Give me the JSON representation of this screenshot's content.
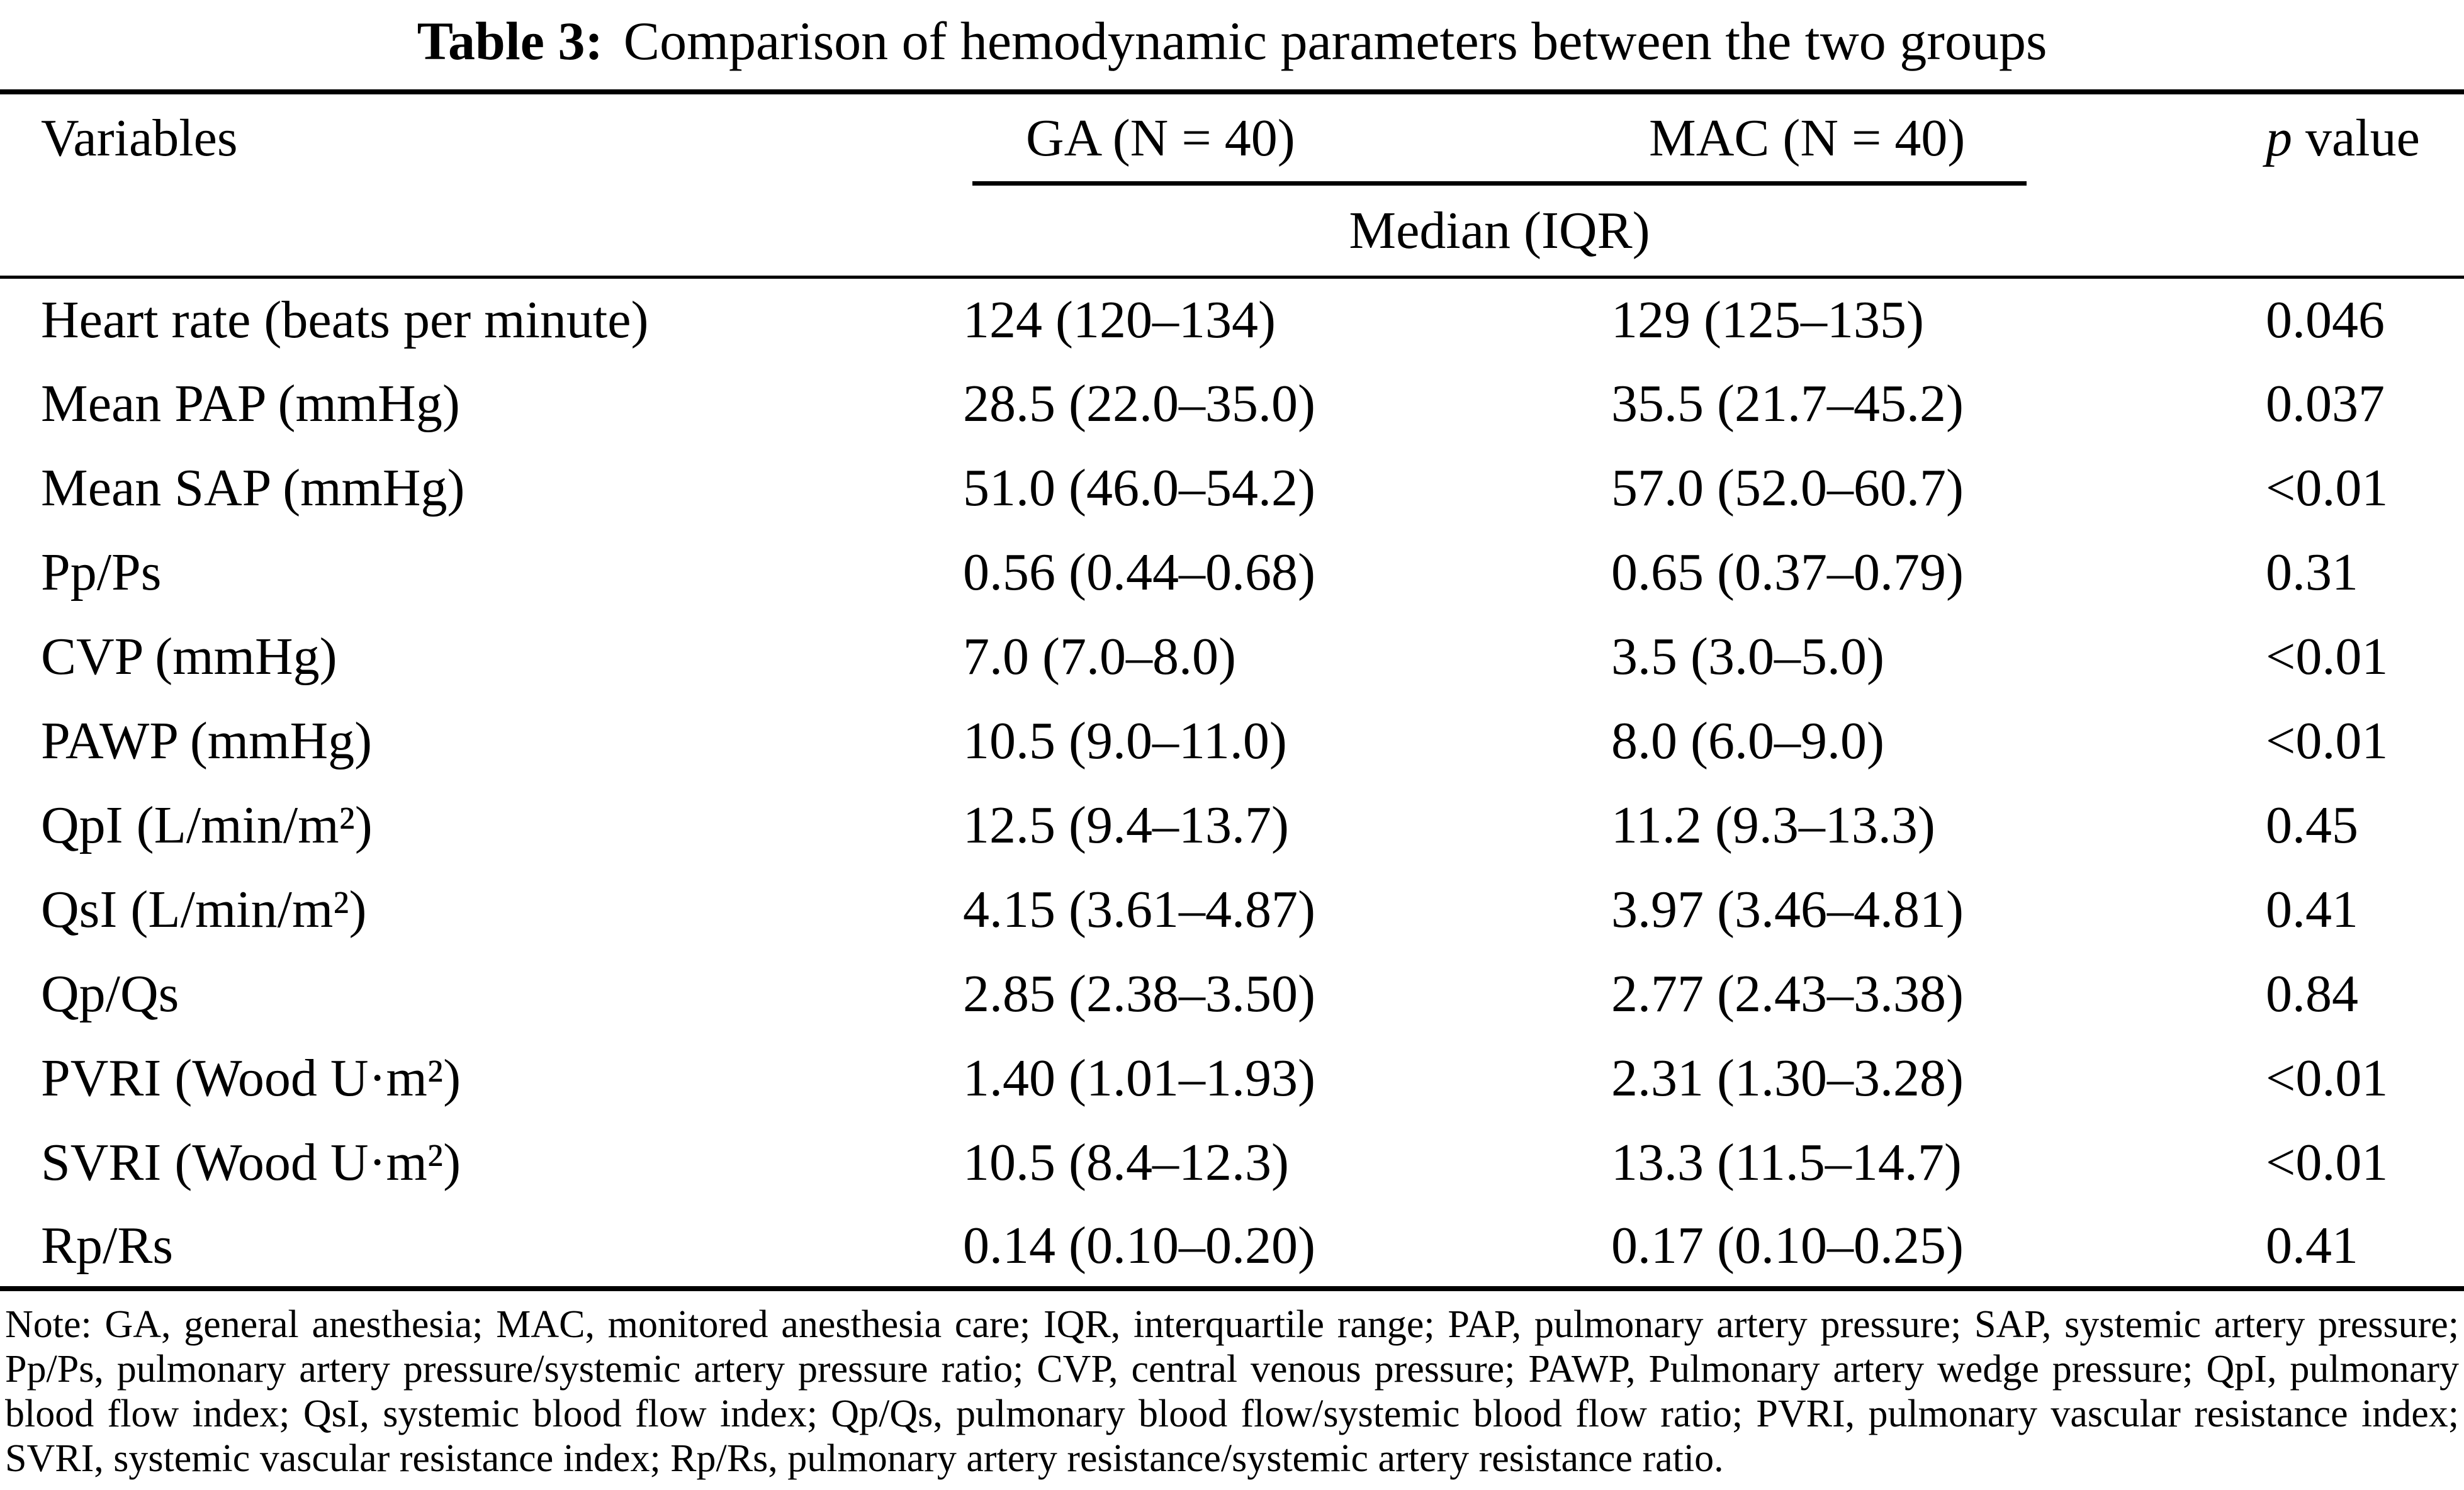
{
  "title": {
    "label": "Table 3:",
    "rest": "Comparison of hemodynamic parameters between the two groups"
  },
  "header": {
    "variables": "Variables",
    "group1": "GA (N = 40)",
    "group2": "MAC (N = 40)",
    "p_italic": "p",
    "p_rest": "value",
    "spanner": "Median (IQR)"
  },
  "rows": [
    {
      "variable": "Heart rate (beats per minute)",
      "ga": "124 (120–134)",
      "mac": "129 (125–135)",
      "p": "0.046"
    },
    {
      "variable": "Mean PAP (mmHg)",
      "ga": "28.5 (22.0–35.0)",
      "mac": "35.5 (21.7–45.2)",
      "p": "0.037"
    },
    {
      "variable": "Mean SAP (mmHg)",
      "ga": "51.0 (46.0–54.2)",
      "mac": "57.0 (52.0–60.7)",
      "p": "<0.01"
    },
    {
      "variable": "Pp/Ps",
      "ga": "0.56 (0.44–0.68)",
      "mac": "0.65 (0.37–0.79)",
      "p": "0.31"
    },
    {
      "variable": "CVP (mmHg)",
      "ga": "7.0 (7.0–8.0)",
      "mac": "3.5 (3.0–5.0)",
      "p": "<0.01"
    },
    {
      "variable": "PAWP (mmHg)",
      "ga": "10.5 (9.0–11.0)",
      "mac": "8.0 (6.0–9.0)",
      "p": "<0.01"
    },
    {
      "variable": "QpI (L/min/m²)",
      "ga": "12.5 (9.4–13.7)",
      "mac": "11.2 (9.3–13.3)",
      "p": "0.45"
    },
    {
      "variable": "QsI (L/min/m²)",
      "ga": "4.15 (3.61–4.87)",
      "mac": "3.97 (3.46–4.81)",
      "p": "0.41"
    },
    {
      "variable": "Qp/Qs",
      "ga": "2.85 (2.38–3.50)",
      "mac": "2.77 (2.43–3.38)",
      "p": "0.84"
    },
    {
      "variable": "PVRI (Wood U·m²)",
      "ga": "1.40 (1.01–1.93)",
      "mac": "2.31 (1.30–3.28)",
      "p": "<0.01"
    },
    {
      "variable": "SVRI (Wood U·m²)",
      "ga": "10.5 (8.4–12.3)",
      "mac": "13.3 (11.5–14.7)",
      "p": "<0.01"
    },
    {
      "variable": "Rp/Rs",
      "ga": "0.14 (0.10–0.20)",
      "mac": "0.17 (0.10–0.25)",
      "p": "0.41"
    }
  ],
  "note": "Note: GA, general anesthesia; MAC, monitored anesthesia care; IQR, interquartile range; PAP, pulmonary artery pressure; SAP, systemic artery pressure; Pp/Ps, pulmonary artery pressure/systemic artery pressure ratio; CVP, central venous pressure; PAWP, Pulmonary artery wedge pressure; QpI, pulmonary blood flow index; QsI, systemic blood flow index; Qp/Qs, pulmonary blood flow/systemic blood flow ratio; PVRI, pulmonary vascular resistance index; SVRI, systemic vascular resistance index; Rp/Rs, pulmonary artery resistance/systemic artery resistance ratio."
}
